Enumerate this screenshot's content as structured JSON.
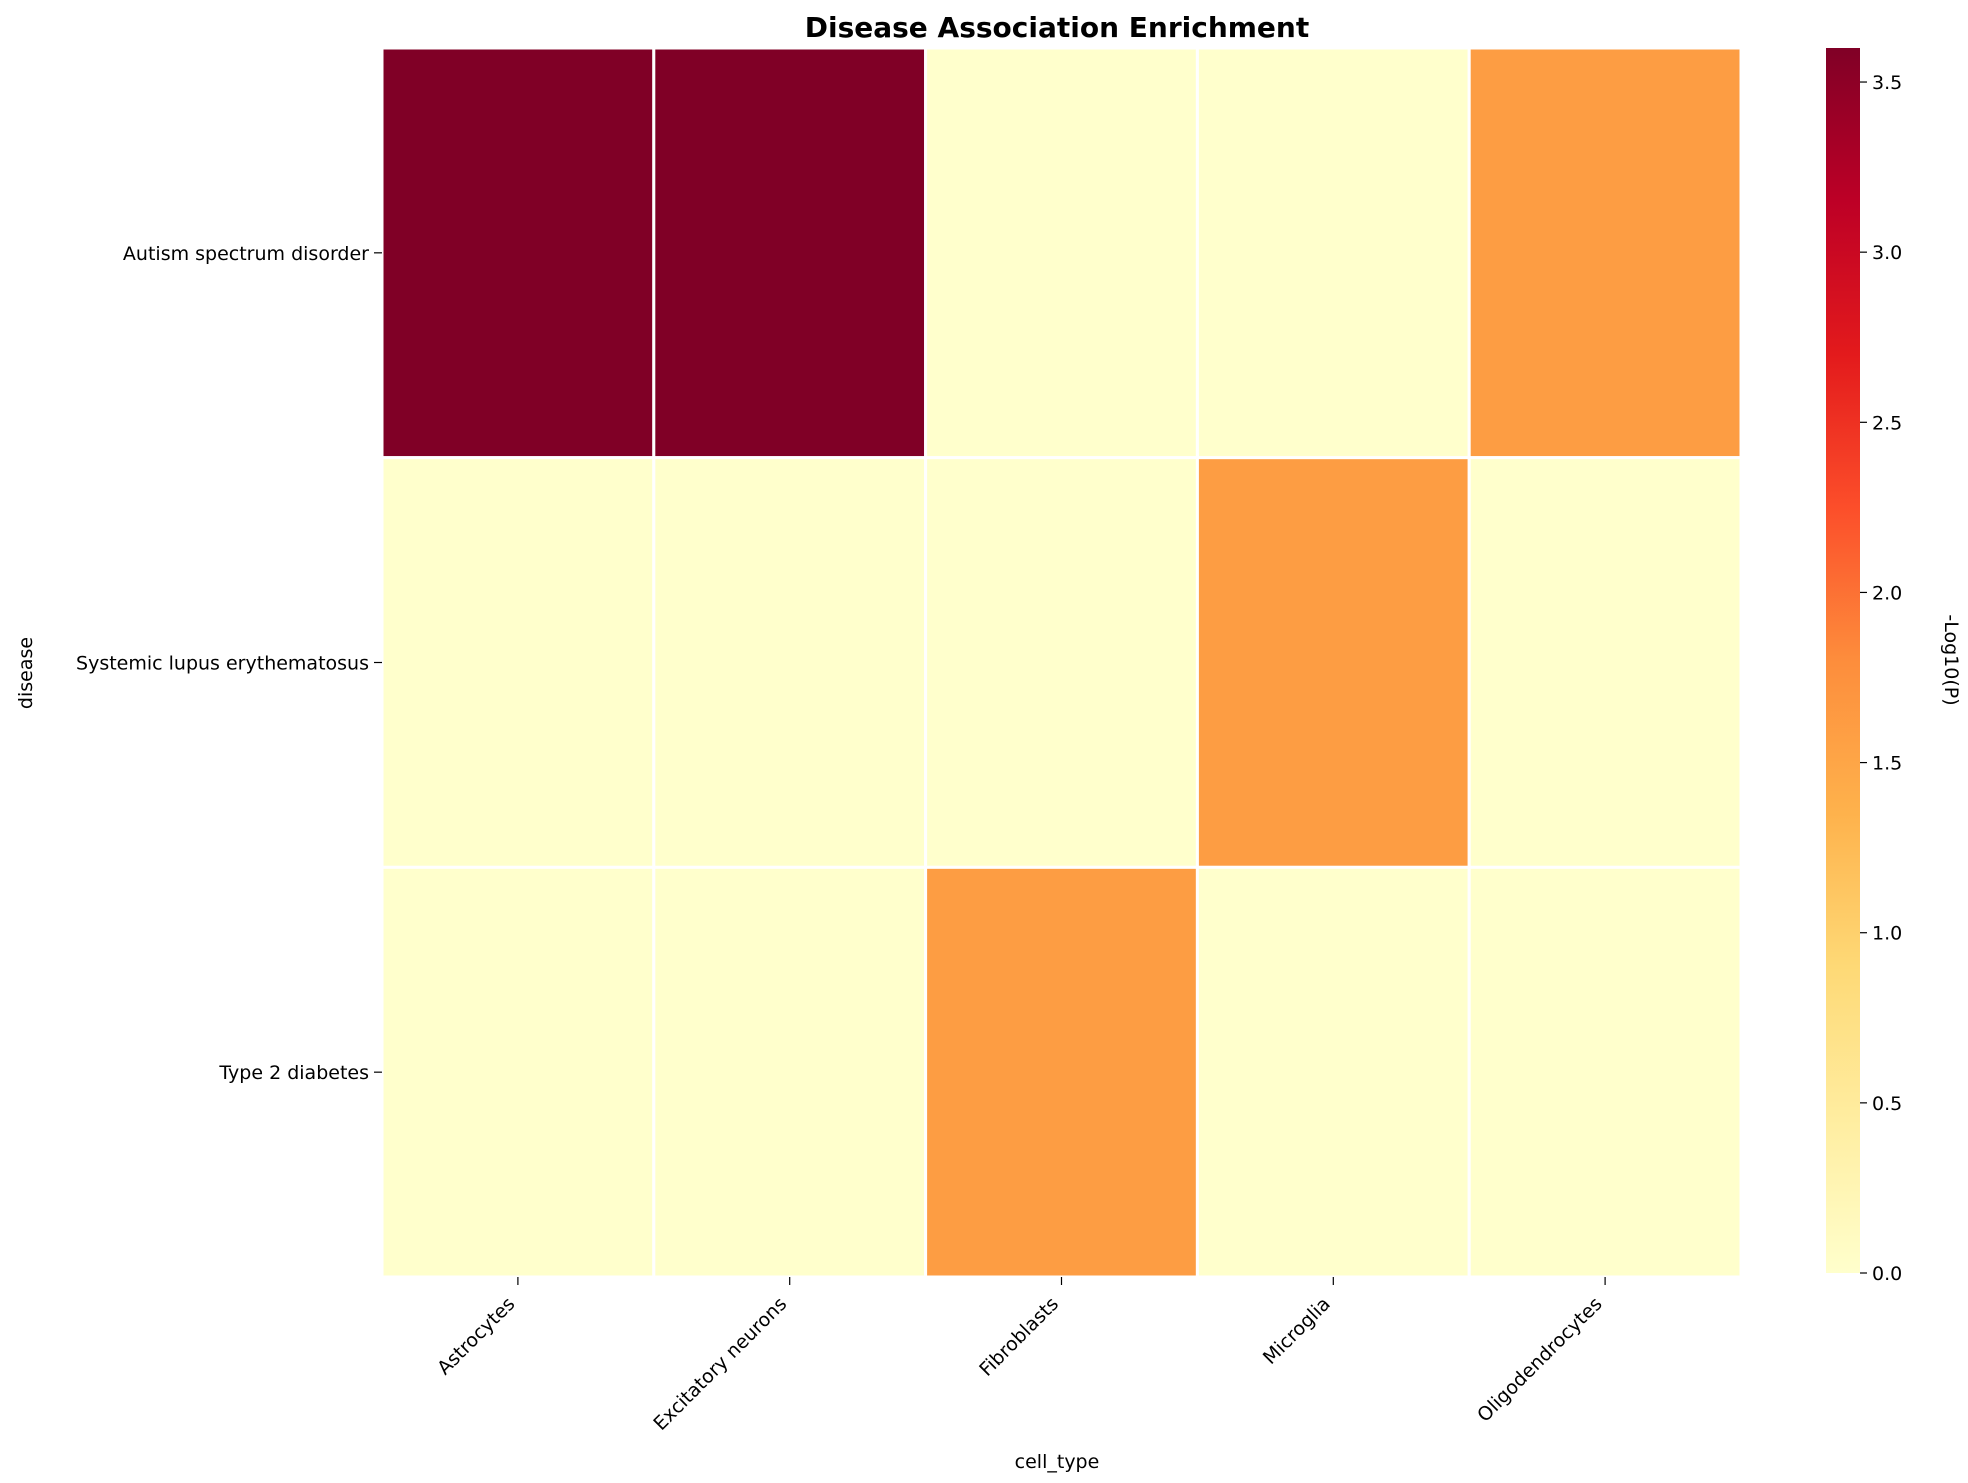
{
  "chart_data": {
    "type": "heatmap",
    "title": "Disease Association Enrichment",
    "xlabel": "cell_type",
    "ylabel": "disease",
    "x": [
      "Astrocytes",
      "Excitatory neurons",
      "Fibroblasts",
      "Microglia",
      "Oligodendrocytes"
    ],
    "y": [
      "Autism spectrum disorder",
      "Systemic lupus erythematosus",
      "Type 2 diabetes"
    ],
    "values": [
      [
        3.6,
        3.6,
        0.0,
        0.0,
        1.6
      ],
      [
        0.0,
        0.0,
        0.0,
        1.6,
        0.0
      ],
      [
        0.0,
        0.0,
        1.6,
        0.0,
        0.0
      ]
    ],
    "colorbar": {
      "label": "-Log10(P)",
      "range": [
        0,
        3.6
      ],
      "ticks": [
        "0.0",
        "0.5",
        "1.0",
        "1.5",
        "2.0",
        "2.5",
        "3.0",
        "3.5"
      ],
      "colormap": "YlOrRd"
    },
    "grid": false,
    "legend": "colorbar-right"
  }
}
